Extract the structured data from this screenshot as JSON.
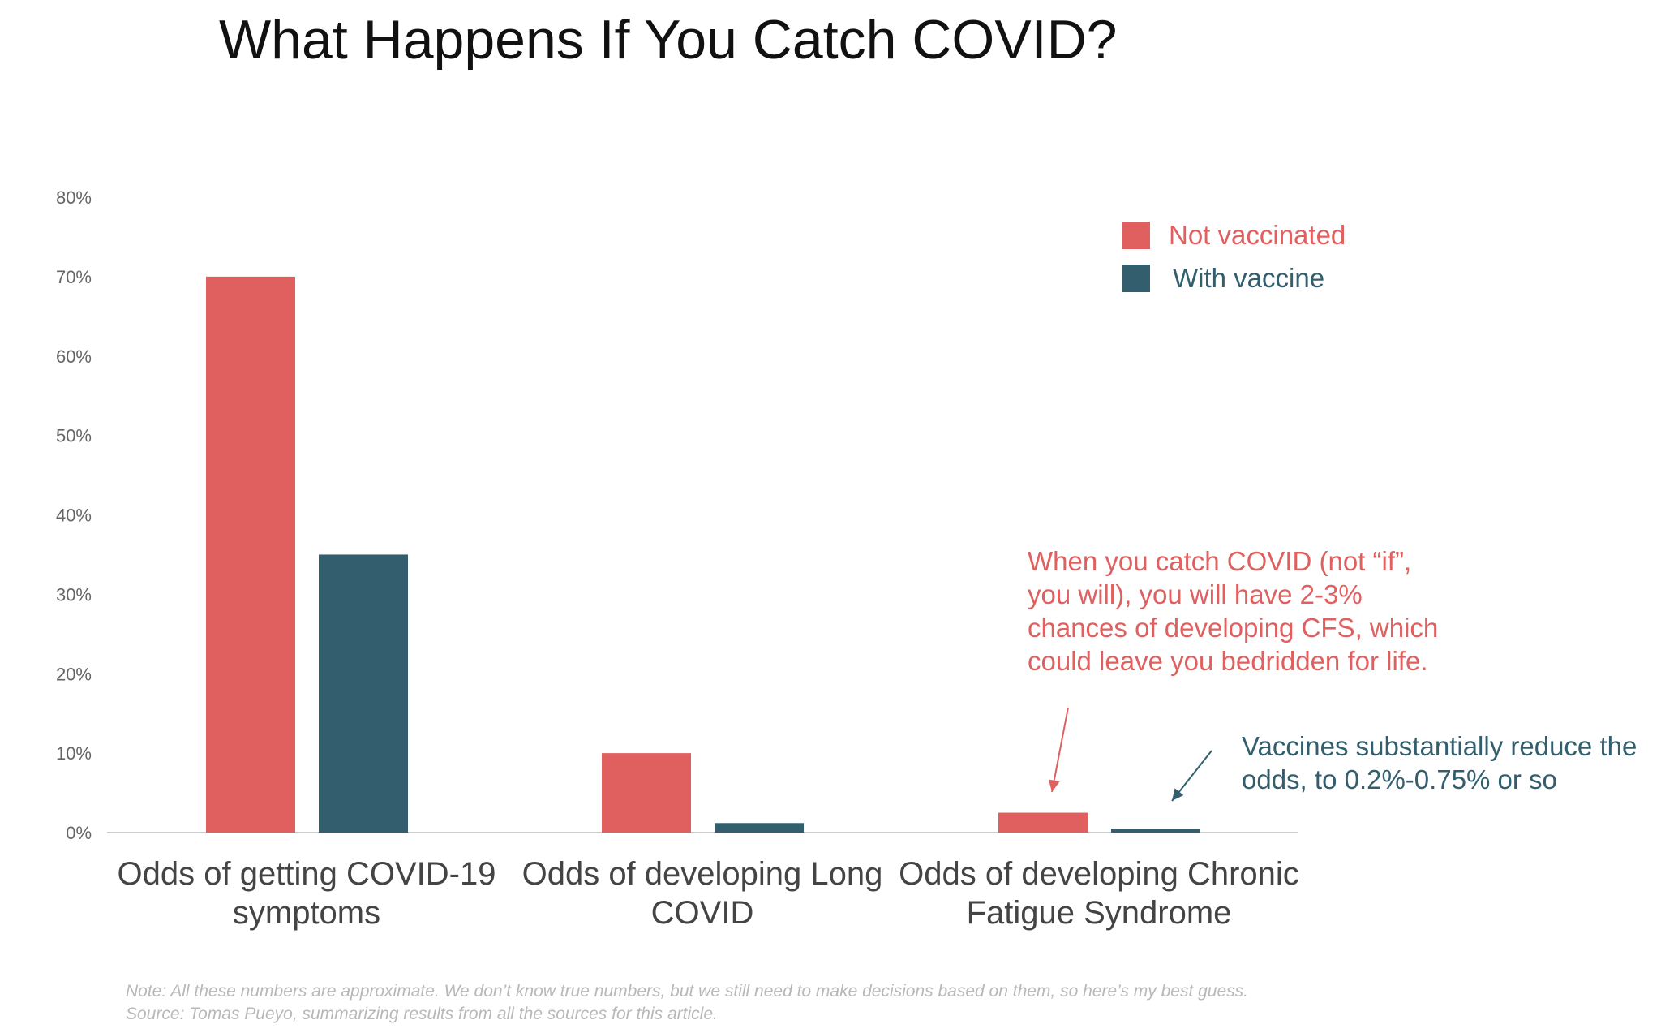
{
  "chart_data": {
    "type": "bar",
    "title": "What Happens If You Catch COVID?",
    "categories": [
      [
        "Odds of getting COVID-19",
        "symptoms"
      ],
      [
        "Odds of developing Long",
        "COVID"
      ],
      [
        "Odds of developing Chronic",
        "Fatigue Syndrome"
      ]
    ],
    "series": [
      {
        "name": "Not vaccinated",
        "color": "#e06060",
        "values": [
          70,
          10,
          2.5
        ]
      },
      {
        "name": "With vaccine",
        "color": "#325e6e",
        "values": [
          35,
          1.2,
          0.5
        ]
      }
    ],
    "ylim": [
      0,
      80
    ],
    "yticks": [
      0,
      10,
      20,
      30,
      40,
      50,
      60,
      70,
      80
    ],
    "ytick_labels": [
      "0%",
      "10%",
      "20%",
      "30%",
      "40%",
      "50%",
      "60%",
      "70%",
      "80%"
    ],
    "legend_position": "top-right",
    "grid": false,
    "annotations": [
      {
        "lines": [
          "When you catch COVID (not “if”,",
          "you will), you will have 2-3%",
          "chances of developing CFS, which",
          "could leave you bedridden for life."
        ],
        "color": "#e06060",
        "points_to": {
          "category": 2,
          "series": 0
        }
      },
      {
        "lines": [
          "Vaccines substantially reduce the",
          "odds, to 0.2%-0.75% or so"
        ],
        "color": "#325e6e",
        "points_to": {
          "category": 2,
          "series": 1
        }
      }
    ]
  },
  "footnote": {
    "note": "Note: All these numbers are approximate. We don’t know true numbers, but we still need to make decisions based on them, so here’s my best guess.",
    "source": "Source: Tomas Pueyo, summarizing results from all the sources for this article."
  }
}
